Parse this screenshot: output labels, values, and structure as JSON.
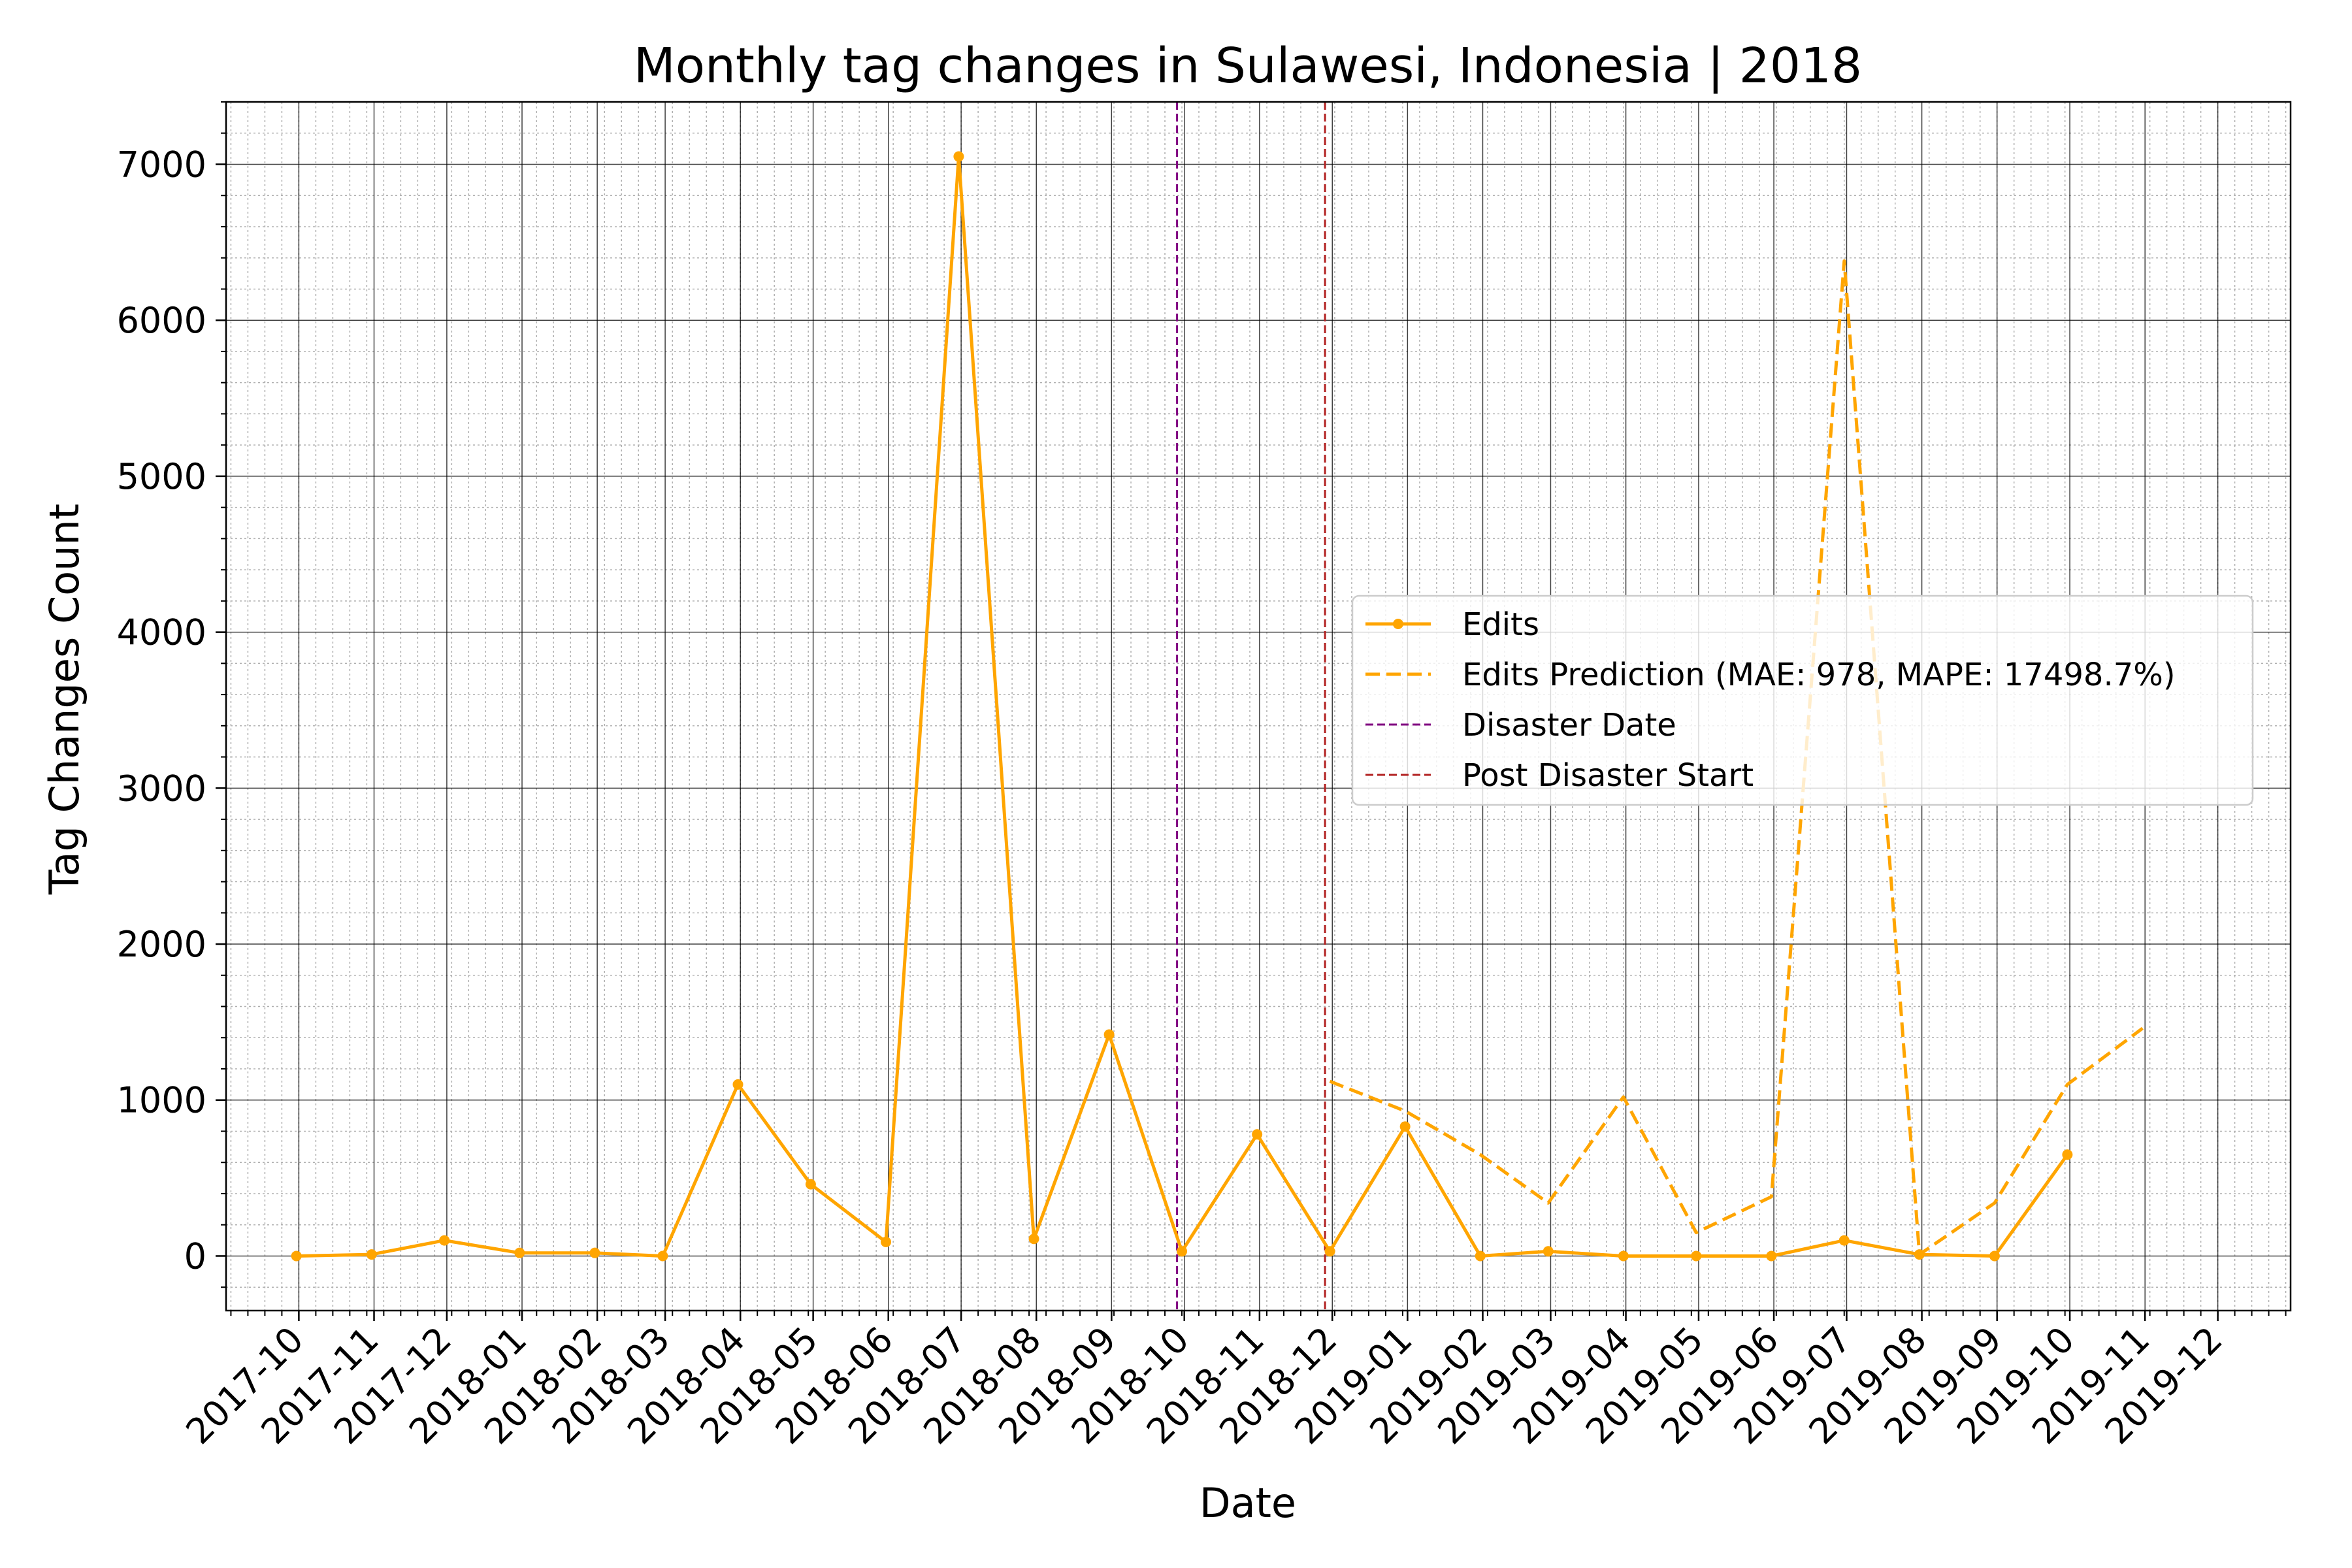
{
  "chart_data": {
    "type": "line",
    "title": "Monthly tag changes in Sulawesi, Indonesia | 2018",
    "xlabel": "Date",
    "ylabel": "Tag Changes Count",
    "x_tick_labels": [
      "2017-10",
      "2017-11",
      "2017-12",
      "2018-01",
      "2018-02",
      "2018-03",
      "2018-04",
      "2018-05",
      "2018-06",
      "2018-07",
      "2018-08",
      "2018-09",
      "2018-10",
      "2018-11",
      "2018-12",
      "2019-01",
      "2019-02",
      "2019-03",
      "2019-04",
      "2019-05",
      "2019-06",
      "2019-07",
      "2019-08",
      "2019-09",
      "2019-10",
      "2019-11",
      "2019-12"
    ],
    "y_ticks": [
      0,
      1000,
      2000,
      3000,
      4000,
      5000,
      6000,
      7000
    ],
    "xlim": [
      "2017-09-01",
      "2019-12-31"
    ],
    "ylim": [
      -350,
      7400
    ],
    "grid": "major solid, minor dotted",
    "legend_position": "center-right",
    "series": [
      {
        "name": "Edits",
        "style": "solid-markers",
        "color": "#FFA500",
        "points": [
          {
            "x": "2017-09-30",
            "y": 0
          },
          {
            "x": "2017-10-31",
            "y": 10
          },
          {
            "x": "2017-11-30",
            "y": 100
          },
          {
            "x": "2017-12-31",
            "y": 20
          },
          {
            "x": "2018-01-31",
            "y": 20
          },
          {
            "x": "2018-02-28",
            "y": 0
          },
          {
            "x": "2018-03-31",
            "y": 1100
          },
          {
            "x": "2018-04-30",
            "y": 460
          },
          {
            "x": "2018-05-31",
            "y": 90
          },
          {
            "x": "2018-06-30",
            "y": 7050
          },
          {
            "x": "2018-07-31",
            "y": 110
          },
          {
            "x": "2018-08-31",
            "y": 1420
          },
          {
            "x": "2018-09-30",
            "y": 30
          },
          {
            "x": "2018-10-31",
            "y": 780
          },
          {
            "x": "2018-11-30",
            "y": 30
          },
          {
            "x": "2018-12-31",
            "y": 830
          },
          {
            "x": "2019-01-31",
            "y": 0
          },
          {
            "x": "2019-02-28",
            "y": 30
          },
          {
            "x": "2019-03-31",
            "y": 0
          },
          {
            "x": "2019-04-30",
            "y": 0
          },
          {
            "x": "2019-05-31",
            "y": 0
          },
          {
            "x": "2019-06-30",
            "y": 100
          },
          {
            "x": "2019-07-31",
            "y": 10
          },
          {
            "x": "2019-08-31",
            "y": 0
          },
          {
            "x": "2019-09-30",
            "y": 650
          }
        ]
      },
      {
        "name": "Edits Prediction (MAE: 978, MAPE: 17498.7%)",
        "style": "dashed",
        "color": "#FFA500",
        "points": [
          {
            "x": "2018-11-30",
            "y": 1120
          },
          {
            "x": "2018-12-31",
            "y": 930
          },
          {
            "x": "2019-01-31",
            "y": 650
          },
          {
            "x": "2019-02-28",
            "y": 340
          },
          {
            "x": "2019-03-31",
            "y": 1020
          },
          {
            "x": "2019-04-30",
            "y": 150
          },
          {
            "x": "2019-05-31",
            "y": 380
          },
          {
            "x": "2019-06-30",
            "y": 6380
          },
          {
            "x": "2019-07-31",
            "y": 10
          },
          {
            "x": "2019-08-31",
            "y": 340
          },
          {
            "x": "2019-09-30",
            "y": 1100
          },
          {
            "x": "2019-10-31",
            "y": 1460
          }
        ]
      }
    ],
    "vlines": [
      {
        "name": "Disaster Date",
        "x": "2018-09-28",
        "color": "#800080",
        "style": "dashed"
      },
      {
        "name": "Post Disaster Start",
        "x": "2018-11-28",
        "color": "#B22222",
        "style": "dashed"
      }
    ]
  }
}
